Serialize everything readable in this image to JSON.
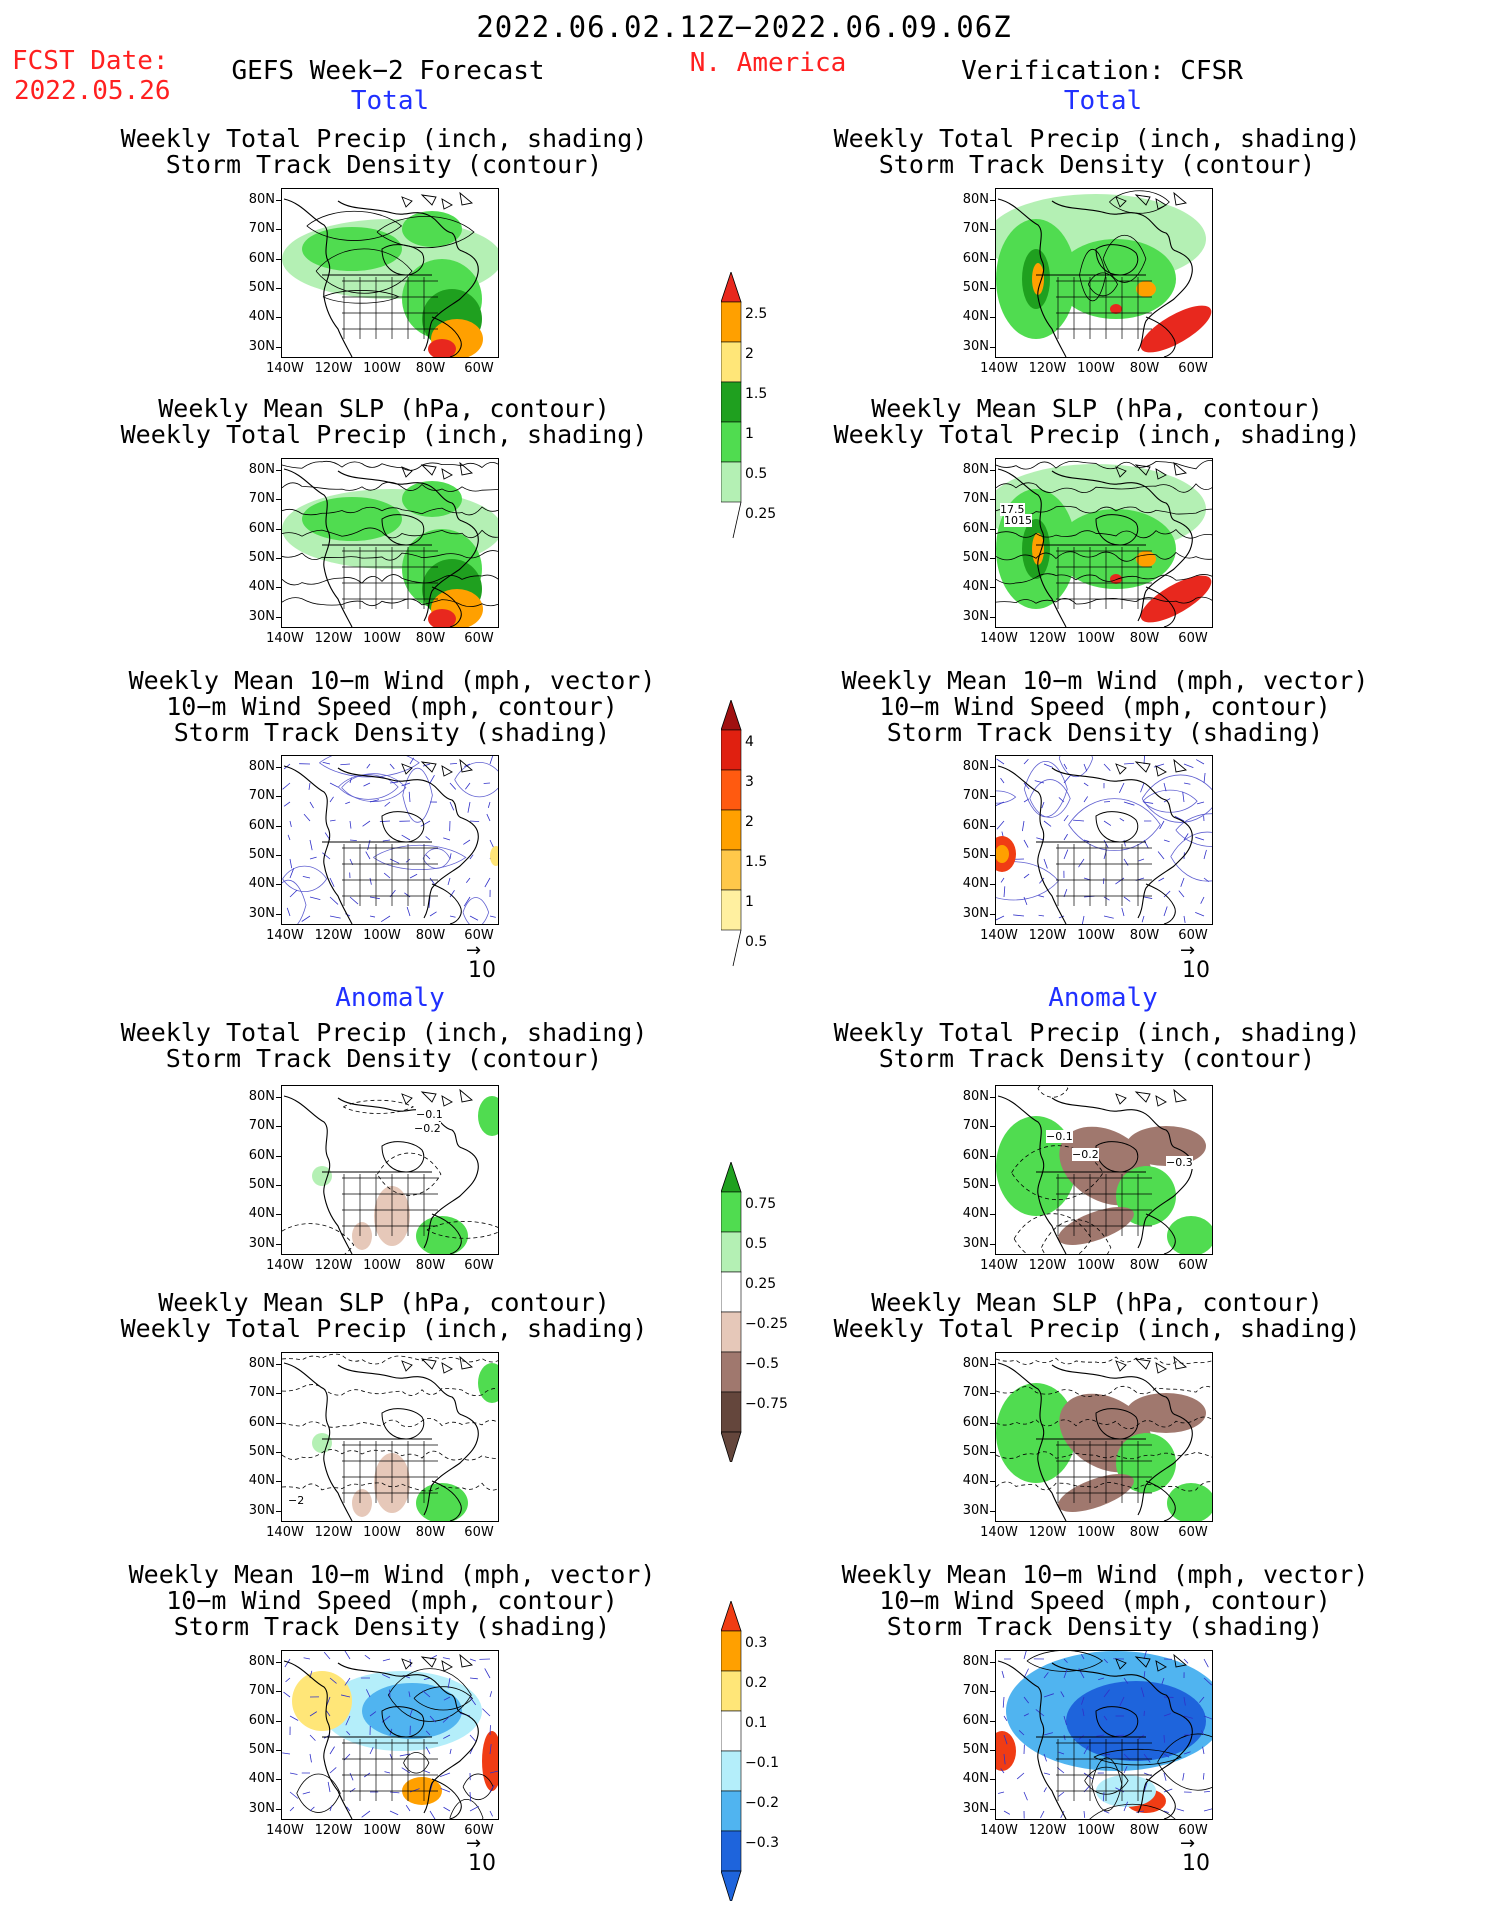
{
  "header": {
    "period": "2022.06.02.12Z−2022.06.09.06Z",
    "fcst_label": "FCST Date:",
    "fcst_date": "2022.05.26",
    "region": "N. America",
    "left_title": "GEFS Week−2 Forecast",
    "right_title": "Verification: CFSR",
    "total_label": "Total",
    "anomaly_label": "Anomaly"
  },
  "titles": {
    "precip_storm": [
      "Weekly Total Precip (inch, shading)",
      "Storm Track Density (contour)"
    ],
    "slp_precip": [
      "Weekly Mean SLP (hPa, contour)",
      "Weekly Total Precip (inch, shading)"
    ],
    "wind": [
      "Weekly Mean 10−m Wind (mph, vector)",
      "10−m Wind Speed (mph, contour)",
      "Storm Track Density (shading)"
    ]
  },
  "axes": {
    "lat_labels": [
      "80N",
      "70N",
      "60N",
      "50N",
      "40N",
      "30N"
    ],
    "lon_labels": [
      "140W",
      "120W",
      "100W",
      "80W",
      "60W"
    ]
  },
  "vector_ref": "10",
  "colorbars": {
    "precip_total": {
      "labels": [
        "2.5",
        "2",
        "1.5",
        "1",
        "0.5",
        "0.25"
      ],
      "colors": [
        "#e8281e",
        "#ffa000",
        "#ffe678",
        "#1fa01f",
        "#50dc50",
        "#b4f0b4"
      ]
    },
    "storm_total": {
      "labels": [
        "4",
        "3",
        "2",
        "1.5",
        "1",
        "0.5"
      ],
      "colors": [
        "#a01010",
        "#e02010",
        "#ff5a10",
        "#ffa000",
        "#ffc84a",
        "#fff0a0"
      ]
    },
    "precip_anom": {
      "labels": [
        "0.75",
        "0.5",
        "0.25",
        "−0.25",
        "−0.5",
        "−0.75"
      ],
      "colors": [
        "#1fa01f",
        "#50dc50",
        "#b4f0b4",
        "#ffffff",
        "#e6c8b9",
        "#a0786e",
        "#64463c"
      ]
    },
    "storm_anom": {
      "labels": [
        "0.3",
        "0.2",
        "0.1",
        "−0.1",
        "−0.2",
        "−0.3"
      ],
      "colors": [
        "#f03c14",
        "#ffa000",
        "#ffe678",
        "#ffffff",
        "#b4eefa",
        "#50b4f0",
        "#1e64dc"
      ]
    }
  },
  "map_annotations": {
    "anom_precip_left": [
      "−0.1",
      "−0.2"
    ],
    "anom_precip_right": [
      "−0.1",
      "−0.2",
      "−0.3"
    ],
    "anom_slp_left": [
      "−2"
    ],
    "total_slp_right": [
      "17.5",
      "1015"
    ]
  },
  "colors": {
    "precip_light": "#b4f0b4",
    "precip_mid": "#50dc50",
    "precip_dark": "#1fa01f",
    "storm_blue": "#1e64dc",
    "storm_light_blue": "#b4eefa",
    "dry_brown": "#a0786e",
    "title_red": "#ff2020",
    "label_blue": "#2030ff"
  }
}
